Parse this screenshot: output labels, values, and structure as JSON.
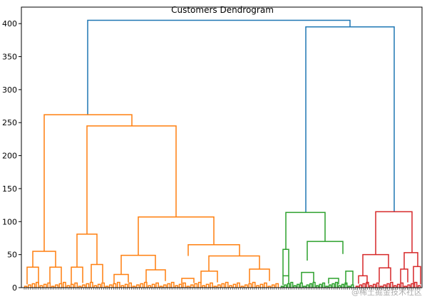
{
  "chart_data": {
    "type": "dendrogram",
    "title": "Customers Dendrogram",
    "xlabel": "",
    "ylabel": "",
    "ylim": [
      0,
      425
    ],
    "yticks": [
      0,
      50,
      100,
      150,
      200,
      250,
      300,
      350,
      400
    ],
    "grid": false,
    "colors": {
      "root": "#1f77b4",
      "cluster_1": "#ff7f0e",
      "cluster_2": "#2ca02c",
      "cluster_3": "#d62728",
      "axis": "#000000"
    },
    "merges_major": [
      {
        "name": "root",
        "height": 405,
        "color": "root"
      },
      {
        "name": "right-root",
        "height": 395,
        "color": "root"
      },
      {
        "name": "orange-top",
        "height": 262,
        "color": "cluster_1"
      },
      {
        "name": "orange-sub",
        "height": 245,
        "color": "cluster_1"
      },
      {
        "name": "orange-right",
        "height": 107,
        "color": "cluster_1"
      },
      {
        "name": "green-top",
        "height": 114,
        "color": "cluster_2"
      },
      {
        "name": "red-top",
        "height": 115,
        "color": "cluster_3"
      },
      {
        "name": "orange-mid",
        "height": 81,
        "color": "cluster_1"
      },
      {
        "name": "orange-left",
        "height": 55,
        "color": "cluster_1"
      },
      {
        "name": "orange-r1",
        "height": 49,
        "color": "cluster_1"
      },
      {
        "name": "orange-r2",
        "height": 65,
        "color": "cluster_1"
      },
      {
        "name": "green-l",
        "height": 58,
        "color": "cluster_2"
      },
      {
        "name": "green-r",
        "height": 70,
        "color": "cluster_2"
      },
      {
        "name": "red-l",
        "height": 50,
        "color": "cluster_3"
      },
      {
        "name": "red-r",
        "height": 53,
        "color": "cluster_3"
      }
    ],
    "leaf_count": 200
  },
  "watermark": "@稀土掘金技术社区"
}
